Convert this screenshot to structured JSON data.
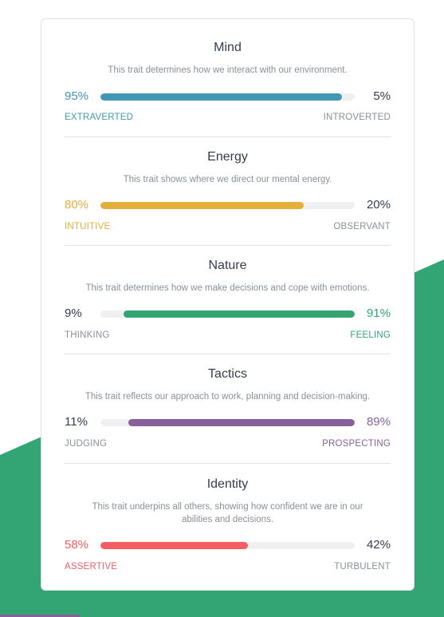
{
  "theme": {
    "bg_green": "#33a474",
    "strip_purple": "#88619a",
    "text_dark": "#343c4b",
    "text_muted": "#8a8f98"
  },
  "traits": [
    {
      "title": "Mind",
      "description": "This trait determines how we interact with our environment.",
      "left_pct": "95%",
      "right_pct": "5%",
      "left_label": "EXTRAVERTED",
      "right_label": "INTROVERTED",
      "value": 95,
      "dominant": "left",
      "color": "#4298b4"
    },
    {
      "title": "Energy",
      "description": "This trait shows where we direct our mental energy.",
      "left_pct": "80%",
      "right_pct": "20%",
      "left_label": "INTUITIVE",
      "right_label": "OBSERVANT",
      "value": 80,
      "dominant": "left",
      "color": "#e4ae3a"
    },
    {
      "title": "Nature",
      "description": "This trait determines how we make decisions and cope with emotions.",
      "left_pct": "9%",
      "right_pct": "91%",
      "left_label": "THINKING",
      "right_label": "FEELING",
      "value": 91,
      "dominant": "right",
      "color": "#33a474"
    },
    {
      "title": "Tactics",
      "description": "This trait reflects our approach to work, planning and decision-making.",
      "left_pct": "11%",
      "right_pct": "89%",
      "left_label": "JUDGING",
      "right_label": "PROSPECTING",
      "value": 89,
      "dominant": "right",
      "color": "#88619a"
    },
    {
      "title": "Identity",
      "description": "This trait underpins all others, showing how confident we are in our abilities and decisions.",
      "left_pct": "58%",
      "right_pct": "42%",
      "left_label": "ASSERTIVE",
      "right_label": "TURBULENT",
      "value": 58,
      "dominant": "left",
      "color": "#f25e62"
    }
  ]
}
